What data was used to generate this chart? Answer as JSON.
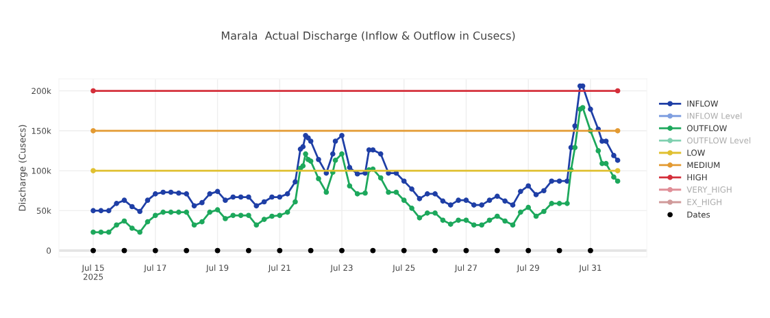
{
  "chart_data": {
    "type": "line",
    "title": "Marala  Actual Discharge (Inflow & Outflow in Cusecs)",
    "ylabel": "Discharge (Cusecs)",
    "xlim": [
      "2025-07-13T21:30",
      "2025-08-01T19:30"
    ],
    "xticks": [
      {
        "value": "2025-07-15",
        "label": "Jul 15\n2025"
      },
      {
        "value": "2025-07-17",
        "label": "Jul 17"
      },
      {
        "value": "2025-07-19",
        "label": "Jul 19"
      },
      {
        "value": "2025-07-21",
        "label": "Jul 21"
      },
      {
        "value": "2025-07-23",
        "label": "Jul 23"
      },
      {
        "value": "2025-07-25",
        "label": "Jul 25"
      },
      {
        "value": "2025-07-27",
        "label": "Jul 27"
      },
      {
        "value": "2025-07-29",
        "label": "Jul 29"
      },
      {
        "value": "2025-07-31",
        "label": "Jul 31"
      }
    ],
    "ylim": [
      -8000,
      215000
    ],
    "yticks": [
      0,
      {
        "value": 50000,
        "label": "50k"
      },
      {
        "value": 100000,
        "label": "100k"
      },
      {
        "value": 150000,
        "label": "150k"
      },
      {
        "value": 200000,
        "label": "200k"
      }
    ],
    "grid": true,
    "legend": "right",
    "marker": "circle",
    "line_style": "solid",
    "series": [
      {
        "name": "INFLOW",
        "color": "#1f3fa6",
        "x": [
          "2025-07-15T00:00",
          "2025-07-15T06:00",
          "2025-07-15T12:00",
          "2025-07-15T18:00",
          "2025-07-16T00:00",
          "2025-07-16T06:00",
          "2025-07-16T12:00",
          "2025-07-16T18:00",
          "2025-07-17T00:00",
          "2025-07-17T06:00",
          "2025-07-17T12:00",
          "2025-07-17T18:00",
          "2025-07-18T00:00",
          "2025-07-18T06:00",
          "2025-07-18T12:00",
          "2025-07-18T18:00",
          "2025-07-19T00:00",
          "2025-07-19T06:00",
          "2025-07-19T12:00",
          "2025-07-19T18:00",
          "2025-07-20T00:00",
          "2025-07-20T06:00",
          "2025-07-20T12:00",
          "2025-07-20T18:00",
          "2025-07-21T00:00",
          "2025-07-21T06:00",
          "2025-07-21T12:00",
          "2025-07-21T16:00",
          "2025-07-21T18:00",
          "2025-07-21T20:00",
          "2025-07-21T22:00",
          "2025-07-22T00:00",
          "2025-07-22T06:00",
          "2025-07-22T12:00",
          "2025-07-22T17:00",
          "2025-07-22T19:00",
          "2025-07-23T00:00",
          "2025-07-23T06:00",
          "2025-07-23T12:00",
          "2025-07-23T18:00",
          "2025-07-23T21:00",
          "2025-07-24T00:00",
          "2025-07-24T06:00",
          "2025-07-24T12:00",
          "2025-07-24T18:00",
          "2025-07-25T00:00",
          "2025-07-25T06:00",
          "2025-07-25T12:00",
          "2025-07-25T18:00",
          "2025-07-26T00:00",
          "2025-07-26T06:00",
          "2025-07-26T12:00",
          "2025-07-26T18:00",
          "2025-07-27T00:00",
          "2025-07-27T06:00",
          "2025-07-27T12:00",
          "2025-07-27T18:00",
          "2025-07-28T00:00",
          "2025-07-28T06:00",
          "2025-07-28T12:00",
          "2025-07-28T18:00",
          "2025-07-29T00:00",
          "2025-07-29T06:00",
          "2025-07-29T12:00",
          "2025-07-29T18:00",
          "2025-07-30T00:00",
          "2025-07-30T06:00",
          "2025-07-30T09:00",
          "2025-07-30T12:00",
          "2025-07-30T16:00",
          "2025-07-30T18:00",
          "2025-07-31T00:00",
          "2025-07-31T06:00",
          "2025-07-31T09:00",
          "2025-07-31T12:00",
          "2025-07-31T18:00",
          "2025-07-31T21:00"
        ],
        "values": [
          50000,
          50000,
          50000,
          59000,
          63000,
          55000,
          49000,
          63000,
          71000,
          73000,
          73000,
          72000,
          71000,
          56000,
          60000,
          71000,
          74000,
          63000,
          67000,
          67000,
          67000,
          56000,
          61000,
          67000,
          67000,
          71000,
          86000,
          127000,
          130000,
          144000,
          141000,
          137000,
          114000,
          97000,
          121000,
          137000,
          144000,
          104000,
          96000,
          97000,
          126000,
          126000,
          121000,
          97000,
          97000,
          87000,
          77000,
          65000,
          71000,
          71000,
          62000,
          57000,
          63000,
          63000,
          57000,
          57000,
          63000,
          68000,
          62000,
          57000,
          74000,
          81000,
          70000,
          75000,
          87000,
          87000,
          87000,
          129000,
          156000,
          206000,
          206000,
          177000,
          152000,
          137000,
          137000,
          119000,
          113000
        ]
      },
      {
        "name": "INFLOW Level",
        "color": "#7f9fe0"
      },
      {
        "name": "OUTFLOW",
        "color": "#1da85c",
        "x": [
          "2025-07-15T00:00",
          "2025-07-15T06:00",
          "2025-07-15T12:00",
          "2025-07-15T18:00",
          "2025-07-16T00:00",
          "2025-07-16T06:00",
          "2025-07-16T12:00",
          "2025-07-16T18:00",
          "2025-07-17T00:00",
          "2025-07-17T06:00",
          "2025-07-17T12:00",
          "2025-07-17T18:00",
          "2025-07-18T00:00",
          "2025-07-18T06:00",
          "2025-07-18T12:00",
          "2025-07-18T18:00",
          "2025-07-19T00:00",
          "2025-07-19T06:00",
          "2025-07-19T12:00",
          "2025-07-19T18:00",
          "2025-07-20T00:00",
          "2025-07-20T06:00",
          "2025-07-20T12:00",
          "2025-07-20T18:00",
          "2025-07-21T00:00",
          "2025-07-21T06:00",
          "2025-07-21T12:00",
          "2025-07-21T16:00",
          "2025-07-21T18:00",
          "2025-07-21T20:00",
          "2025-07-21T22:00",
          "2025-07-22T00:00",
          "2025-07-22T06:00",
          "2025-07-22T12:00",
          "2025-07-22T17:00",
          "2025-07-22T19:00",
          "2025-07-23T00:00",
          "2025-07-23T06:00",
          "2025-07-23T12:00",
          "2025-07-23T18:00",
          "2025-07-23T21:00",
          "2025-07-24T00:00",
          "2025-07-24T06:00",
          "2025-07-24T12:00",
          "2025-07-24T18:00",
          "2025-07-25T00:00",
          "2025-07-25T06:00",
          "2025-07-25T12:00",
          "2025-07-25T18:00",
          "2025-07-26T00:00",
          "2025-07-26T06:00",
          "2025-07-26T12:00",
          "2025-07-26T18:00",
          "2025-07-27T00:00",
          "2025-07-27T06:00",
          "2025-07-27T12:00",
          "2025-07-27T18:00",
          "2025-07-28T00:00",
          "2025-07-28T06:00",
          "2025-07-28T12:00",
          "2025-07-28T18:00",
          "2025-07-29T00:00",
          "2025-07-29T06:00",
          "2025-07-29T12:00",
          "2025-07-29T18:00",
          "2025-07-30T00:00",
          "2025-07-30T06:00",
          "2025-07-30T09:00",
          "2025-07-30T12:00",
          "2025-07-30T16:00",
          "2025-07-30T18:00",
          "2025-07-31T00:00",
          "2025-07-31T06:00",
          "2025-07-31T09:00",
          "2025-07-31T12:00",
          "2025-07-31T18:00",
          "2025-07-31T21:00"
        ],
        "values": [
          23000,
          23000,
          23000,
          32000,
          37000,
          28000,
          23000,
          36000,
          44000,
          48000,
          48000,
          48000,
          48000,
          32000,
          36000,
          48000,
          51000,
          40000,
          44000,
          44000,
          44000,
          32000,
          39000,
          43000,
          44000,
          48000,
          61000,
          103000,
          106000,
          121000,
          114000,
          112000,
          90000,
          73000,
          98000,
          113000,
          121000,
          81000,
          71000,
          72000,
          101000,
          102000,
          91000,
          73000,
          73000,
          63000,
          53000,
          41000,
          47000,
          47000,
          38000,
          33000,
          38000,
          38000,
          32000,
          32000,
          38000,
          43000,
          37000,
          32000,
          48000,
          54000,
          43000,
          49000,
          59000,
          59000,
          59000,
          101000,
          129000,
          177000,
          179000,
          150000,
          125000,
          109000,
          109000,
          92000,
          87000
        ]
      },
      {
        "name": "OUTFLOW Level",
        "color": "#80d0b0"
      },
      {
        "name": "LOW",
        "color": "#e0c030",
        "x": [
          "2025-07-15T00:00",
          "2025-07-31T21:00"
        ],
        "values": [
          100000,
          100000
        ]
      },
      {
        "name": "MEDIUM",
        "color": "#e39a32",
        "x": [
          "2025-07-15T00:00",
          "2025-07-31T21:00"
        ],
        "values": [
          150000,
          150000
        ]
      },
      {
        "name": "HIGH",
        "color": "#d42f3a",
        "x": [
          "2025-07-15T00:00",
          "2025-07-31T21:00"
        ],
        "values": [
          200000,
          200000
        ]
      },
      {
        "name": "VERY_HIGH",
        "color": "#e08f98"
      },
      {
        "name": "EX_HIGH",
        "color": "#d09a9a"
      },
      {
        "name": "Dates",
        "type": "scatter",
        "color": "#000000",
        "x": [
          "2025-07-15",
          "2025-07-16",
          "2025-07-17",
          "2025-07-18",
          "2025-07-19",
          "2025-07-20",
          "2025-07-21",
          "2025-07-22",
          "2025-07-23",
          "2025-07-24",
          "2025-07-25",
          "2025-07-26",
          "2025-07-27",
          "2025-07-28",
          "2025-07-29",
          "2025-07-30",
          "2025-07-31"
        ],
        "values": [
          0,
          0,
          0,
          0,
          0,
          0,
          0,
          0,
          0,
          0,
          0,
          0,
          0,
          0,
          0,
          0,
          0
        ]
      }
    ]
  }
}
